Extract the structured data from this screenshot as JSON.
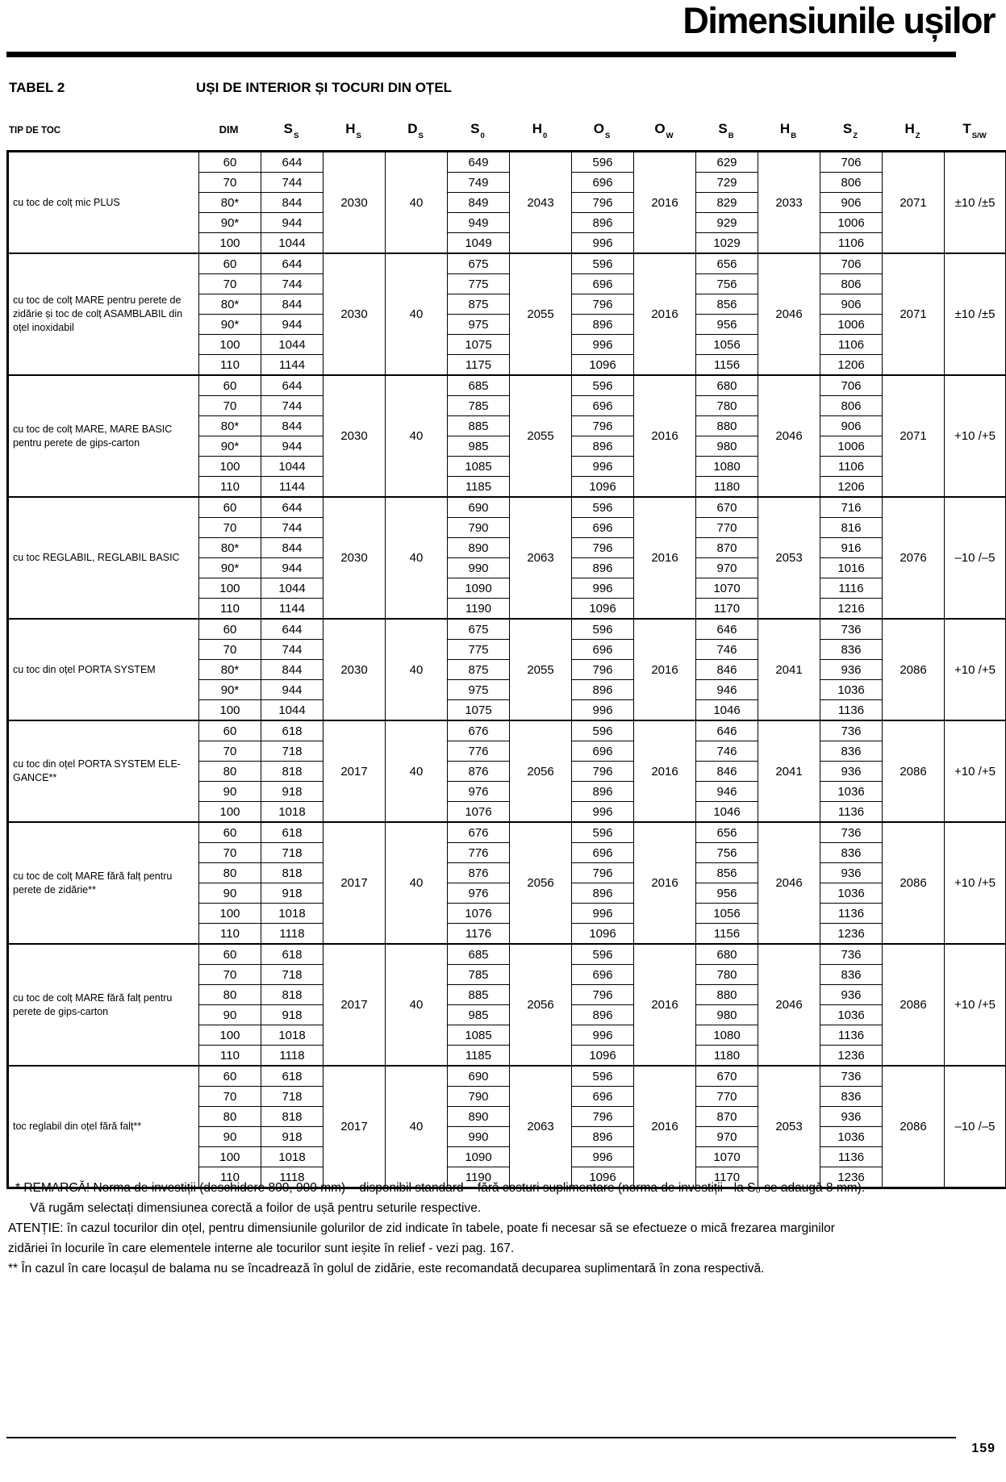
{
  "page": {
    "title": "Dimensiunile ușilor",
    "page_number": "159"
  },
  "table_meta": {
    "label": "TABEL 2",
    "subtitle": "UȘI DE INTERIOR ȘI TOCURI DIN OȚEL",
    "row_header": "TIP DE TOC",
    "columns": [
      {
        "base": "DIM",
        "sub": ""
      },
      {
        "base": "S",
        "sub": "S"
      },
      {
        "base": "H",
        "sub": "S"
      },
      {
        "base": "D",
        "sub": "S"
      },
      {
        "base": "S",
        "sub": "0"
      },
      {
        "base": "H",
        "sub": "0"
      },
      {
        "base": "O",
        "sub": "S"
      },
      {
        "base": "O",
        "sub": "W"
      },
      {
        "base": "S",
        "sub": "B"
      },
      {
        "base": "H",
        "sub": "B"
      },
      {
        "base": "S",
        "sub": "Z"
      },
      {
        "base": "H",
        "sub": "Z"
      },
      {
        "base": "T",
        "sub": "S/W"
      }
    ],
    "groups": [
      {
        "label": "cu toc de colț mic PLUS",
        "dim": [
          "60",
          "70",
          "80*",
          "90*",
          "100"
        ],
        "s_s": [
          644,
          744,
          844,
          944,
          1044
        ],
        "h_s": 2030,
        "d_s": 40,
        "s_0": [
          649,
          749,
          849,
          949,
          1049
        ],
        "h_0": 2043,
        "o_s": [
          596,
          696,
          796,
          896,
          996
        ],
        "o_w": 2016,
        "s_b": [
          629,
          729,
          829,
          929,
          1029
        ],
        "h_b": 2033,
        "s_z": [
          706,
          806,
          906,
          1006,
          1106
        ],
        "h_z": 2071,
        "t_sw": "±10 /±5"
      },
      {
        "label": "cu toc de colț MARE pentru perete de zidărie și toc de colț ASAMBLABIL din oțel inoxidabil",
        "dim": [
          "60",
          "70",
          "80*",
          "90*",
          "100",
          "110"
        ],
        "s_s": [
          644,
          744,
          844,
          944,
          1044,
          1144
        ],
        "h_s": 2030,
        "d_s": 40,
        "s_0": [
          675,
          775,
          875,
          975,
          1075,
          1175
        ],
        "h_0": 2055,
        "o_s": [
          596,
          696,
          796,
          896,
          996,
          1096
        ],
        "o_w": 2016,
        "s_b": [
          656,
          756,
          856,
          956,
          1056,
          1156
        ],
        "h_b": 2046,
        "s_z": [
          706,
          806,
          906,
          1006,
          1106,
          1206
        ],
        "h_z": 2071,
        "t_sw": "±10 /±5"
      },
      {
        "label": "cu toc de colț MARE, MARE BASIC pentru perete de gips-carton",
        "dim": [
          "60",
          "70",
          "80*",
          "90*",
          "100",
          "110"
        ],
        "s_s": [
          644,
          744,
          844,
          944,
          1044,
          1144
        ],
        "h_s": 2030,
        "d_s": 40,
        "s_0": [
          685,
          785,
          885,
          985,
          1085,
          1185
        ],
        "h_0": 2055,
        "o_s": [
          596,
          696,
          796,
          896,
          996,
          1096
        ],
        "o_w": 2016,
        "s_b": [
          680,
          780,
          880,
          980,
          1080,
          1180
        ],
        "h_b": 2046,
        "s_z": [
          706,
          806,
          906,
          1006,
          1106,
          1206
        ],
        "h_z": 2071,
        "t_sw": "+10 /+5"
      },
      {
        "label": "cu toc REGLABIL, REGLABIL BASIC",
        "dim": [
          "60",
          "70",
          "80*",
          "90*",
          "100",
          "110"
        ],
        "s_s": [
          644,
          744,
          844,
          944,
          1044,
          1144
        ],
        "h_s": 2030,
        "d_s": 40,
        "s_0": [
          690,
          790,
          890,
          990,
          1090,
          1190
        ],
        "h_0": 2063,
        "o_s": [
          596,
          696,
          796,
          896,
          996,
          1096
        ],
        "o_w": 2016,
        "s_b": [
          670,
          770,
          870,
          970,
          1070,
          1170
        ],
        "h_b": 2053,
        "s_z": [
          716,
          816,
          916,
          1016,
          1116,
          1216
        ],
        "h_z": 2076,
        "t_sw": "–10 /–5"
      },
      {
        "label": "cu toc din oțel PORTA SYSTEM",
        "dim": [
          "60",
          "70",
          "80*",
          "90*",
          "100"
        ],
        "s_s": [
          644,
          744,
          844,
          944,
          1044
        ],
        "h_s": 2030,
        "d_s": 40,
        "s_0": [
          675,
          775,
          875,
          975,
          1075
        ],
        "h_0": 2055,
        "o_s": [
          596,
          696,
          796,
          896,
          996
        ],
        "o_w": 2016,
        "s_b": [
          646,
          746,
          846,
          946,
          1046
        ],
        "h_b": 2041,
        "s_z": [
          736,
          836,
          936,
          1036,
          1136
        ],
        "h_z": 2086,
        "t_sw": "+10 /+5"
      },
      {
        "label": "cu toc din oțel PORTA SYSTEM ELE­GANCE**",
        "dim": [
          "60",
          "70",
          "80",
          "90",
          "100"
        ],
        "s_s": [
          618,
          718,
          818,
          918,
          1018
        ],
        "h_s": 2017,
        "d_s": 40,
        "s_0": [
          676,
          776,
          876,
          976,
          1076
        ],
        "h_0": 2056,
        "o_s": [
          596,
          696,
          796,
          896,
          996
        ],
        "o_w": 2016,
        "s_b": [
          646,
          746,
          846,
          946,
          1046
        ],
        "h_b": 2041,
        "s_z": [
          736,
          836,
          936,
          1036,
          1136
        ],
        "h_z": 2086,
        "t_sw": "+10 /+5"
      },
      {
        "label": "cu toc de colț MARE fără falț pentru perete de zidărie**",
        "dim": [
          "60",
          "70",
          "80",
          "90",
          "100",
          "110"
        ],
        "s_s": [
          618,
          718,
          818,
          918,
          1018,
          1118
        ],
        "h_s": 2017,
        "d_s": 40,
        "s_0": [
          676,
          776,
          876,
          976,
          1076,
          1176
        ],
        "h_0": 2056,
        "o_s": [
          596,
          696,
          796,
          896,
          996,
          1096
        ],
        "o_w": 2016,
        "s_b": [
          656,
          756,
          856,
          956,
          1056,
          1156
        ],
        "h_b": 2046,
        "s_z": [
          736,
          836,
          936,
          1036,
          1136,
          1236
        ],
        "h_z": 2086,
        "t_sw": "+10 /+5"
      },
      {
        "label": "cu toc de colț MARE fără falț pentru perete de gips-carton",
        "dim": [
          "60",
          "70",
          "80",
          "90",
          "100",
          "110"
        ],
        "s_s": [
          618,
          718,
          818,
          918,
          1018,
          1118
        ],
        "h_s": 2017,
        "d_s": 40,
        "s_0": [
          685,
          785,
          885,
          985,
          1085,
          1185
        ],
        "h_0": 2056,
        "o_s": [
          596,
          696,
          796,
          896,
          996,
          1096
        ],
        "o_w": 2016,
        "s_b": [
          680,
          780,
          880,
          980,
          1080,
          1180
        ],
        "h_b": 2046,
        "s_z": [
          736,
          836,
          936,
          1036,
          1136,
          1236
        ],
        "h_z": 2086,
        "t_sw": "+10 /+5"
      },
      {
        "label": "toc reglabil din oțel fără falț**",
        "dim": [
          "60",
          "70",
          "80",
          "90",
          "100",
          "110"
        ],
        "s_s": [
          618,
          718,
          818,
          918,
          1018,
          1118
        ],
        "h_s": 2017,
        "d_s": 40,
        "s_0": [
          690,
          790,
          890,
          990,
          1090,
          1190
        ],
        "h_0": 2063,
        "o_s": [
          596,
          696,
          796,
          896,
          996,
          1096
        ],
        "o_w": 2016,
        "s_b": [
          670,
          770,
          870,
          970,
          1070,
          1170
        ],
        "h_b": 2053,
        "s_z": [
          736,
          836,
          936,
          1036,
          1136,
          1236
        ],
        "h_z": 2086,
        "t_sw": "–10 /–5"
      }
    ]
  },
  "footnotes": [
    "* REMARCĂ! Norma de investiții (deschidere 800, 900 mm) – disponibil standard – fără costuri suplimentare (norma de investiții - la S₀ se adaugă 8 mm).",
    "Vă rugăm selectați dimensiunea corectă a foilor de ușă pentru seturile respective.",
    "ATENȚIE: în cazul tocurilor din oțel, pentru dimensiunile golurilor de zid indicate în tabele, poate fi necesar să se efectueze o mică frezarea marginilor",
    "zidăriei în locurile în care elementele interne ale tocurilor sunt ieșite în relief - vezi pag. 167.",
    "** În cazul în care locașul de balama nu se încadrează în golul de zidărie, este recomandată decuparea suplimentară în zona respectivă."
  ]
}
